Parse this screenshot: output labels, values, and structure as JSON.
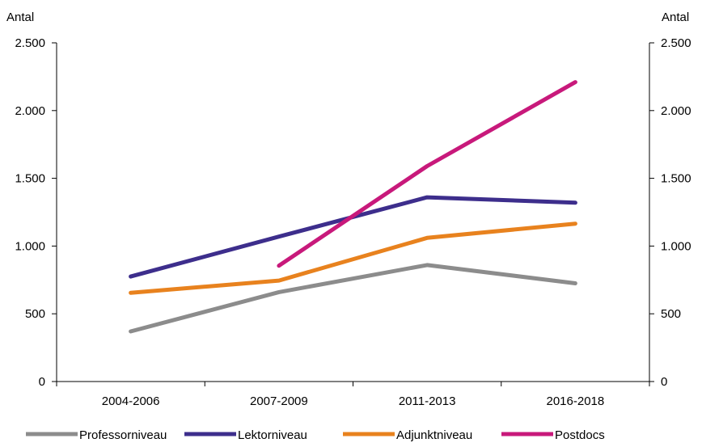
{
  "chart_data": {
    "type": "line",
    "title": "",
    "xlabel": "",
    "ylabel_left": "Antal",
    "ylabel_right": "Antal",
    "categories": [
      "2004-2006",
      "2007-2009",
      "2011-2013",
      "2016-2018"
    ],
    "ylim": [
      0,
      2500
    ],
    "y_ticks": [
      0,
      500,
      1000,
      1500,
      2000,
      2500
    ],
    "y_tick_labels": [
      "0",
      "500",
      "1.000",
      "1.500",
      "2.000",
      "2.500"
    ],
    "grid": false,
    "legend_position": "bottom",
    "series": [
      {
        "name": "Professorniveau",
        "color": "#8c8c8c",
        "values": [
          370,
          660,
          860,
          725
        ]
      },
      {
        "name": "Lektorniveau",
        "color": "#3d2e8c",
        "values": [
          775,
          1070,
          1360,
          1320
        ]
      },
      {
        "name": "Adjunktniveau",
        "color": "#e8821e",
        "values": [
          655,
          745,
          1060,
          1165
        ]
      },
      {
        "name": "Postdocs",
        "color": "#c8197b",
        "values": [
          null,
          855,
          1590,
          2210
        ]
      }
    ]
  }
}
